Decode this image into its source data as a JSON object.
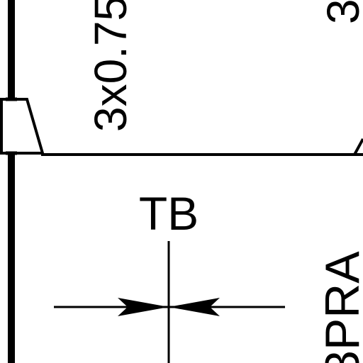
{
  "drawing": {
    "labels": {
      "left_spec": "3x0.75",
      "right_spec_partial": "3",
      "terminal_label": "TB",
      "vertical_partial": "3PRA"
    },
    "colors": {
      "ink": "#000000",
      "paper": "#ffffff"
    }
  }
}
